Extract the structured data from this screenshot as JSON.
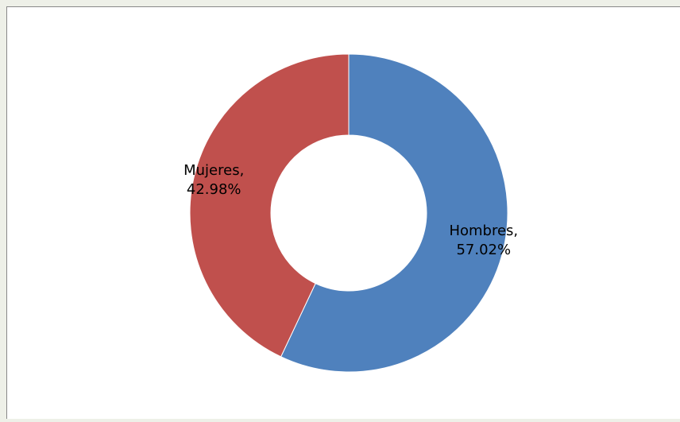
{
  "chart_data": {
    "type": "donut",
    "categories": [
      "Hombres,",
      "Mujeres,"
    ],
    "values": [
      57.02,
      42.98
    ],
    "value_labels": [
      "57.02%",
      "42.98%"
    ],
    "colors": [
      "#4f81bd",
      "#c0504d"
    ]
  }
}
